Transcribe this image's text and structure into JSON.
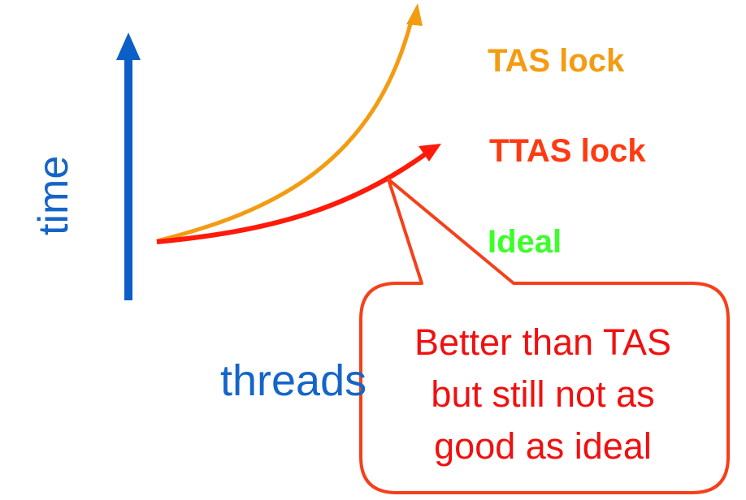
{
  "axes": {
    "y_label": "time",
    "x_label": "threads"
  },
  "series": [
    {
      "name": "TAS lock",
      "color": "#f39c12",
      "trend": "steep increase"
    },
    {
      "name": "TTAS lock",
      "color": "#ff1a0a",
      "trend": "moderate increase"
    },
    {
      "name": "Ideal",
      "color": "#55ff3c",
      "trend": "flat"
    }
  ],
  "callout": {
    "lines": [
      "Better than TAS",
      "but still not as",
      "good as ideal"
    ],
    "border_color": "#f5401a",
    "text_color": "#f01010"
  },
  "colors": {
    "axis": "#1565c8",
    "axis_light": "#6fa8e6"
  }
}
